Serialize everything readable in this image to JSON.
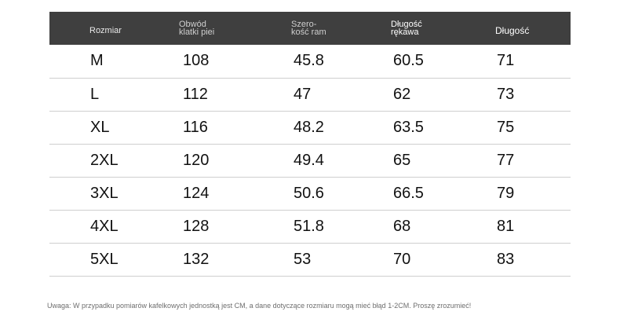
{
  "table": {
    "headers": [
      "Rozmiar",
      "Obwód\nklatki piei",
      "Szero-\nkość ram",
      "Długość\nrękawa",
      "Długość"
    ],
    "rows": [
      [
        "M",
        "108",
        "45.8",
        "60.5",
        "71"
      ],
      [
        "L",
        "112",
        "47",
        "62",
        "73"
      ],
      [
        "XL",
        "116",
        "48.2",
        "63.5",
        "75"
      ],
      [
        "2XL",
        "120",
        "49.4",
        "65",
        "77"
      ],
      [
        "3XL",
        "124",
        "50.6",
        "66.5",
        "79"
      ],
      [
        "4XL",
        "128",
        "51.8",
        "68",
        "81"
      ],
      [
        "5XL",
        "132",
        "53",
        "70",
        "83"
      ]
    ]
  },
  "note": "Uwaga: W przypadku pomiarów kafelkowych jednostką jest CM, a dane dotyczące rozmiaru mogą mieć błąd 1-2CM. Proszę zrozumieć!",
  "colors": {
    "header_background": "#3f3f3f",
    "row_divider": "#cfcfcf",
    "note_text": "#6e6e6e"
  }
}
